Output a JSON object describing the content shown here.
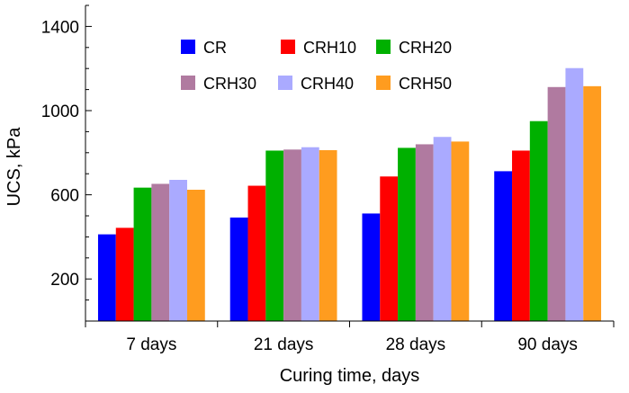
{
  "chart_data": {
    "type": "bar",
    "xlabel": "Curing time, days",
    "ylabel": "UCS, kPa",
    "categories": [
      "7 days",
      "21 days",
      "28 days",
      "90 days"
    ],
    "ylim": [
      0,
      1500
    ],
    "yticks": [
      200,
      600,
      1000,
      1400
    ],
    "grid": false,
    "legend_position": "top-center",
    "series": [
      {
        "name": "CR",
        "color": "#0000ff",
        "values": [
          412,
          492,
          511,
          712
        ]
      },
      {
        "name": "CRH10",
        "color": "#ff0000",
        "values": [
          443,
          643,
          687,
          810
        ]
      },
      {
        "name": "CRH20",
        "color": "#00b000",
        "values": [
          634,
          810,
          823,
          950
        ]
      },
      {
        "name": "CRH30",
        "color": "#b07aa0",
        "values": [
          652,
          815,
          840,
          1112
        ]
      },
      {
        "name": "CRH40",
        "color": "#aaaaff",
        "values": [
          671,
          826,
          875,
          1202
        ]
      },
      {
        "name": "CRH50",
        "color": "#ff9c1f",
        "values": [
          624,
          812,
          853,
          1116
        ]
      }
    ]
  }
}
